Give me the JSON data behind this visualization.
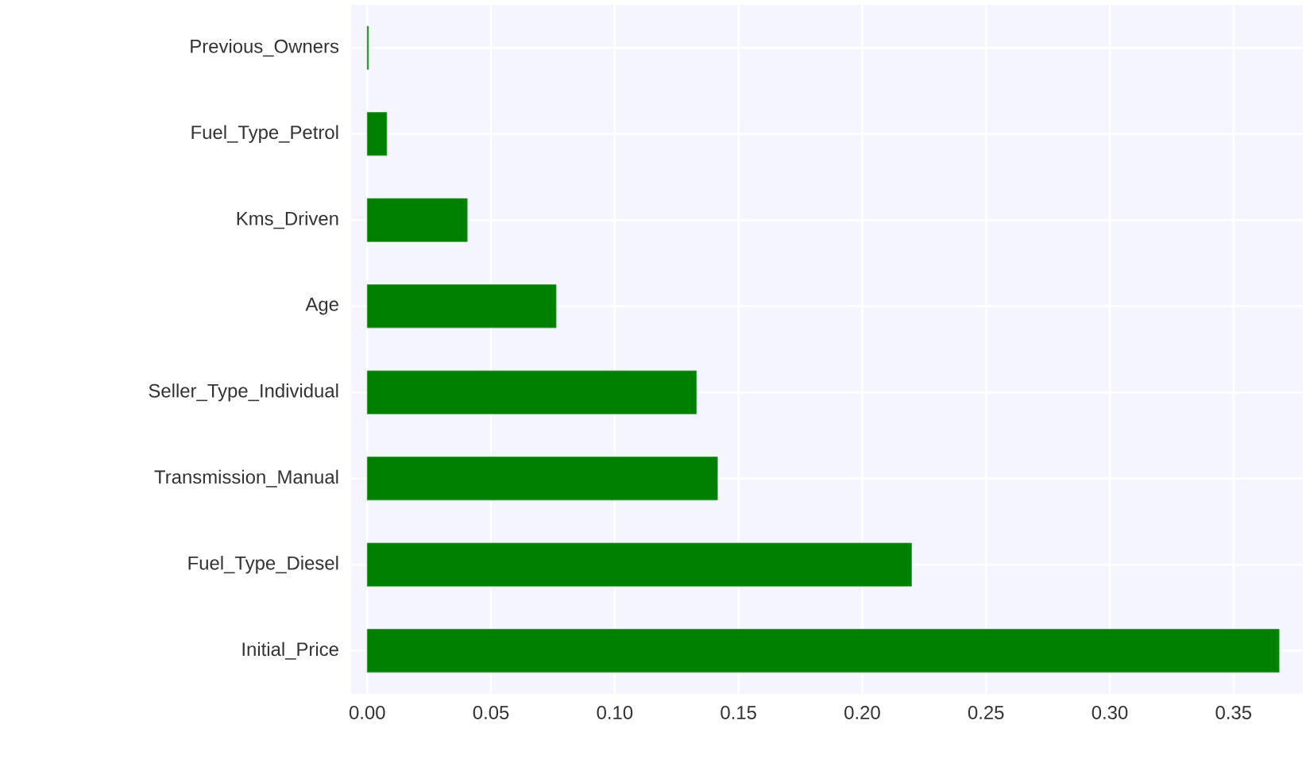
{
  "chart_data": {
    "type": "bar",
    "orientation": "horizontal",
    "categories": [
      "Previous_Owners",
      "Fuel_Type_Petrol",
      "Kms_Driven",
      "Age",
      "Seller_Type_Individual",
      "Transmission_Manual",
      "Fuel_Type_Diesel",
      "Initial_Price"
    ],
    "values": [
      0.0005,
      0.0079,
      0.0404,
      0.0763,
      0.133,
      0.1415,
      0.2199,
      0.3684
    ],
    "color": "#008000",
    "xlim": [
      -0.0065,
      0.378
    ],
    "xticks": [
      {
        "value": 0,
        "label": "0.00"
      },
      {
        "value": 0.05,
        "label": "0.05"
      },
      {
        "value": 0.1,
        "label": "0.10"
      },
      {
        "value": 0.15,
        "label": "0.15"
      },
      {
        "value": 0.2,
        "label": "0.20"
      },
      {
        "value": 0.25,
        "label": "0.25"
      },
      {
        "value": 0.3,
        "label": "0.30"
      },
      {
        "value": 0.35,
        "label": "0.35"
      }
    ],
    "grid": true
  }
}
